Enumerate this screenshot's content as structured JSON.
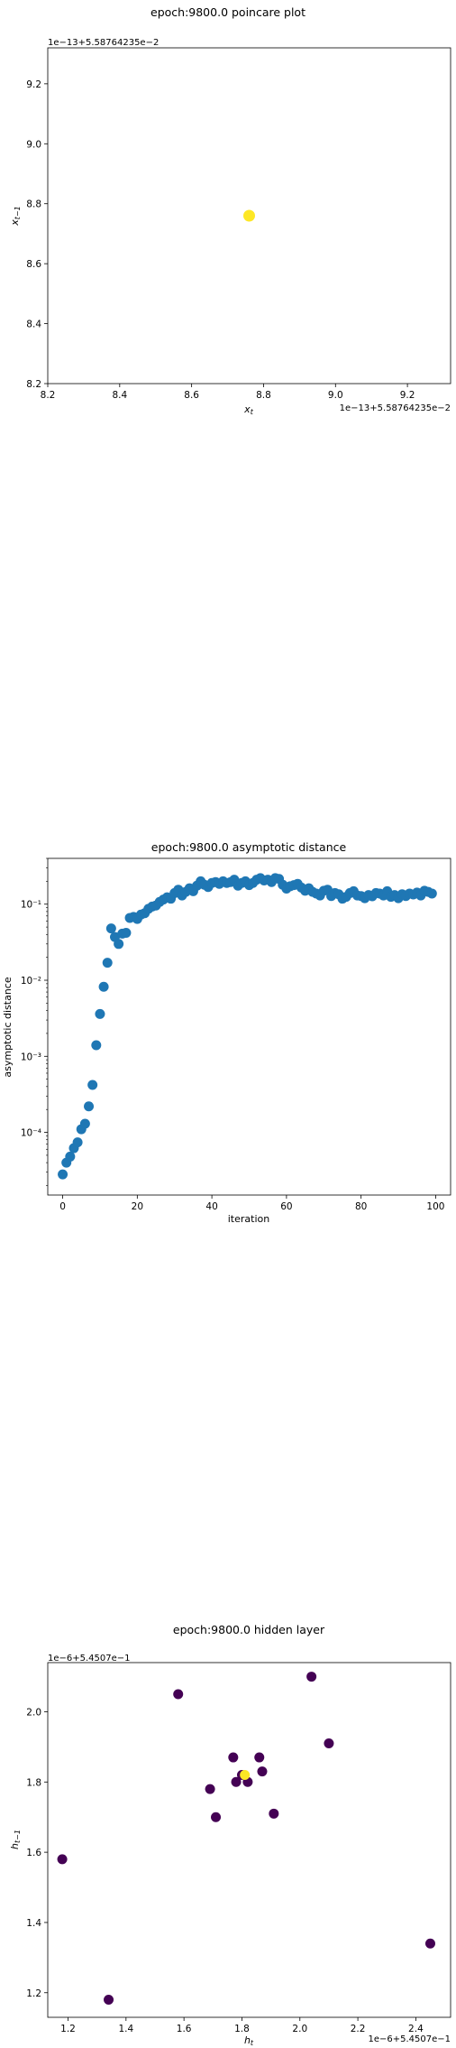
{
  "chart_data": [
    {
      "type": "scatter",
      "title": "epoch:9800.0 poincare plot",
      "xlabel": "x_t",
      "ylabel": "x_{t-1}",
      "x_offset_label": "1e−13+5.58764235e−2",
      "y_offset_label": "1e−13+5.58764235e−2",
      "xlim": [
        8.2,
        9.32
      ],
      "ylim": [
        8.2,
        9.32
      ],
      "xticks": [
        "8.2",
        "8.4",
        "8.6",
        "8.8",
        "9.0",
        "9.2"
      ],
      "yticks": [
        "8.2",
        "8.4",
        "8.6",
        "8.8",
        "9.0",
        "9.2"
      ],
      "x": [
        8.76
      ],
      "y": [
        8.76
      ],
      "point_color": "#fde725",
      "grid": false
    },
    {
      "type": "scatter",
      "title": "epoch:9800.0 asymptotic distance",
      "xlabel": "iteration",
      "ylabel": "asymptotic distance",
      "y_scale": "log",
      "xlim": [
        -4,
        104
      ],
      "ylim": [
        1.5e-05,
        0.4
      ],
      "xticks": [
        "0",
        "20",
        "40",
        "60",
        "80",
        "100"
      ],
      "yticks": [
        "10⁻⁴",
        "10⁻³",
        "10⁻²",
        "10⁻¹"
      ],
      "point_color": "#1f77b4",
      "x": [
        0,
        1,
        2,
        3,
        4,
        5,
        6,
        7,
        8,
        9,
        10,
        11,
        12,
        13,
        14,
        15,
        16,
        17,
        18,
        19,
        20,
        21,
        22,
        23,
        24,
        25,
        26,
        27,
        28,
        29,
        30,
        31,
        32,
        33,
        34,
        35,
        36,
        37,
        38,
        39,
        40,
        41,
        42,
        43,
        44,
        45,
        46,
        47,
        48,
        49,
        50,
        51,
        52,
        53,
        54,
        55,
        56,
        57,
        58,
        59,
        60,
        61,
        62,
        63,
        64,
        65,
        66,
        67,
        68,
        69,
        70,
        71,
        72,
        73,
        74,
        75,
        76,
        77,
        78,
        79,
        80,
        81,
        82,
        83,
        84,
        85,
        86,
        87,
        88,
        89,
        90,
        91,
        92,
        93,
        94,
        95,
        96,
        97,
        98,
        99
      ],
      "y": [
        2.8e-05,
        4e-05,
        4.8e-05,
        6.2e-05,
        7.4e-05,
        0.00011,
        0.00013,
        0.00022,
        0.00042,
        0.0014,
        0.0036,
        0.0082,
        0.017,
        0.048,
        0.037,
        0.03,
        0.041,
        0.042,
        0.066,
        0.068,
        0.064,
        0.073,
        0.076,
        0.087,
        0.093,
        0.096,
        0.107,
        0.115,
        0.123,
        0.118,
        0.14,
        0.155,
        0.13,
        0.145,
        0.162,
        0.148,
        0.175,
        0.2,
        0.18,
        0.168,
        0.19,
        0.195,
        0.185,
        0.2,
        0.19,
        0.195,
        0.21,
        0.175,
        0.19,
        0.2,
        0.178,
        0.19,
        0.21,
        0.22,
        0.205,
        0.21,
        0.195,
        0.22,
        0.215,
        0.18,
        0.16,
        0.172,
        0.178,
        0.185,
        0.165,
        0.15,
        0.162,
        0.145,
        0.138,
        0.13,
        0.15,
        0.155,
        0.128,
        0.14,
        0.135,
        0.118,
        0.125,
        0.14,
        0.148,
        0.13,
        0.128,
        0.12,
        0.132,
        0.127,
        0.14,
        0.138,
        0.13,
        0.148,
        0.125,
        0.132,
        0.12,
        0.135,
        0.128,
        0.138,
        0.134,
        0.142,
        0.13,
        0.15,
        0.145,
        0.138
      ],
      "grid": false
    },
    {
      "type": "scatter",
      "title": "epoch:9800.0 hidden layer",
      "xlabel": "h_t",
      "ylabel": "h_{t-1}",
      "x_offset_label": "1e−6+5.4507e−1",
      "y_offset_label": "1e−6+5.4507e−1",
      "xlim": [
        1.13,
        2.52
      ],
      "ylim": [
        1.13,
        2.14
      ],
      "xticks": [
        "1.2",
        "1.4",
        "1.6",
        "1.8",
        "2.0",
        "2.2",
        "2.4"
      ],
      "yticks": [
        "1.2",
        "1.4",
        "1.6",
        "1.8",
        "2.0"
      ],
      "colors": {
        "early": "#440154",
        "late": "#fde725"
      },
      "x": [
        1.18,
        1.34,
        1.58,
        1.69,
        1.71,
        1.77,
        1.78,
        1.8,
        1.82,
        1.86,
        1.87,
        1.91,
        2.04,
        2.1,
        2.45,
        1.81
      ],
      "y": [
        1.58,
        1.18,
        2.05,
        1.78,
        1.7,
        1.87,
        1.8,
        1.82,
        1.8,
        1.87,
        1.83,
        1.71,
        2.1,
        1.91,
        1.34,
        1.82
      ],
      "c": [
        "early",
        "early",
        "early",
        "early",
        "early",
        "early",
        "early",
        "early",
        "early",
        "early",
        "early",
        "early",
        "early",
        "early",
        "early",
        "late"
      ],
      "grid": false
    }
  ]
}
